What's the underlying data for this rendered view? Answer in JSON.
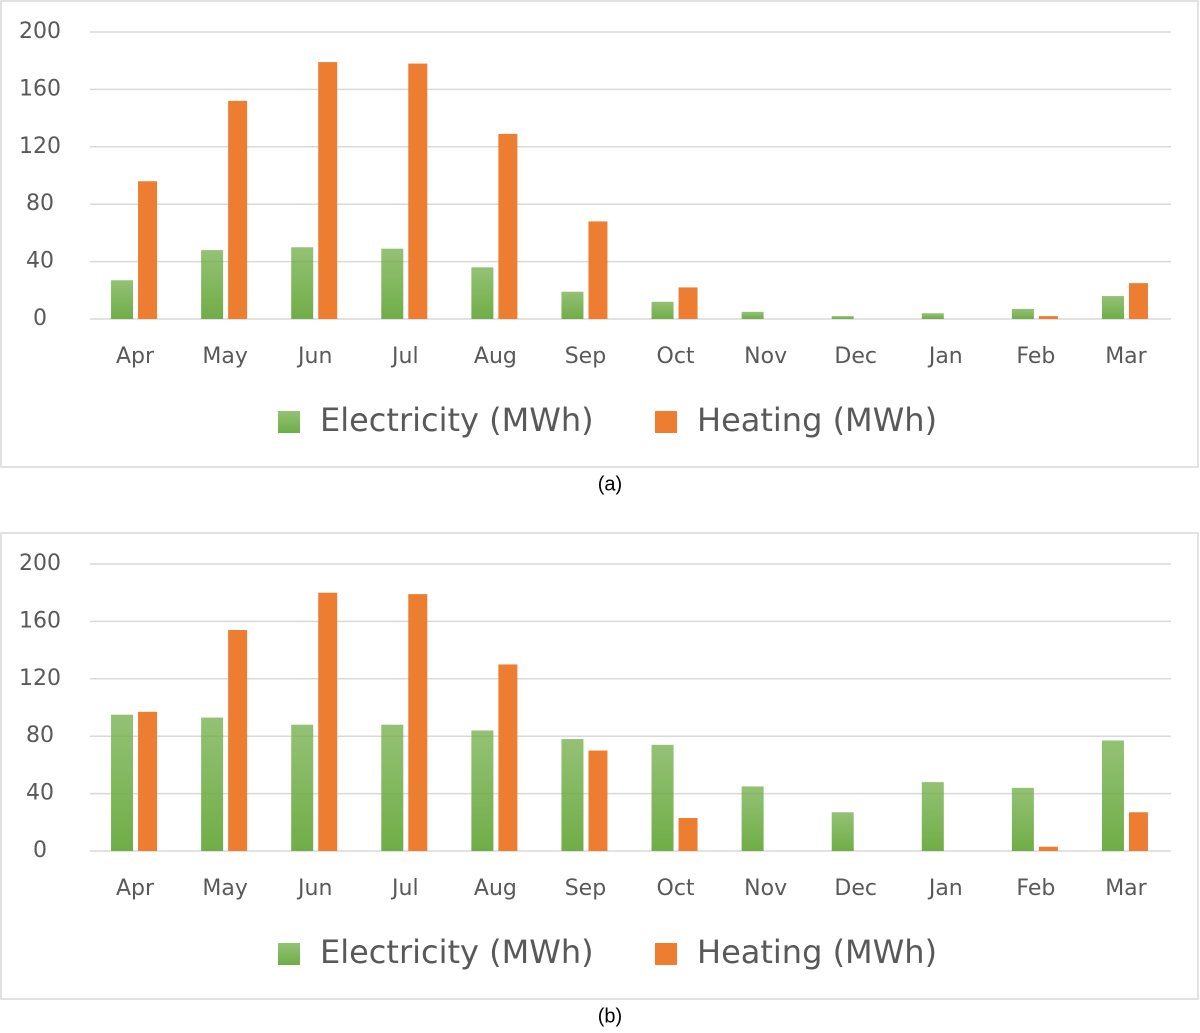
{
  "chart_data": [
    {
      "type": "bar",
      "caption": "(a)",
      "categories": [
        "Apr",
        "May",
        "Jun",
        "Jul",
        "Aug",
        "Sep",
        "Oct",
        "Nov",
        "Dec",
        "Jan",
        "Feb",
        "Mar"
      ],
      "series": [
        {
          "name": "Electricity (MWh)",
          "color": "#70ad47",
          "values": [
            27,
            48,
            50,
            49,
            36,
            19,
            12,
            5,
            2,
            4,
            7,
            16
          ]
        },
        {
          "name": "Heating (MWh)",
          "color": "#ed7d31",
          "values": [
            96,
            152,
            179,
            178,
            129,
            68,
            22,
            0,
            0,
            0,
            2,
            25
          ]
        }
      ],
      "ylim": [
        0,
        200
      ],
      "yticks": [
        0,
        40,
        80,
        120,
        160,
        200
      ],
      "grid": true,
      "legend": "bottom"
    },
    {
      "type": "bar",
      "caption": "(b)",
      "categories": [
        "Apr",
        "May",
        "Jun",
        "Jul",
        "Aug",
        "Sep",
        "Oct",
        "Nov",
        "Dec",
        "Jan",
        "Feb",
        "Mar"
      ],
      "series": [
        {
          "name": "Electricity (MWh)",
          "color": "#70ad47",
          "values": [
            95,
            93,
            88,
            88,
            84,
            78,
            74,
            45,
            27,
            48,
            44,
            77
          ]
        },
        {
          "name": "Heating (MWh)",
          "color": "#ed7d31",
          "values": [
            97,
            154,
            180,
            179,
            130,
            70,
            23,
            0,
            0,
            0,
            3,
            27
          ]
        }
      ],
      "ylim": [
        0,
        200
      ],
      "yticks": [
        0,
        40,
        80,
        120,
        160,
        200
      ],
      "grid": true,
      "legend": "bottom"
    }
  ]
}
